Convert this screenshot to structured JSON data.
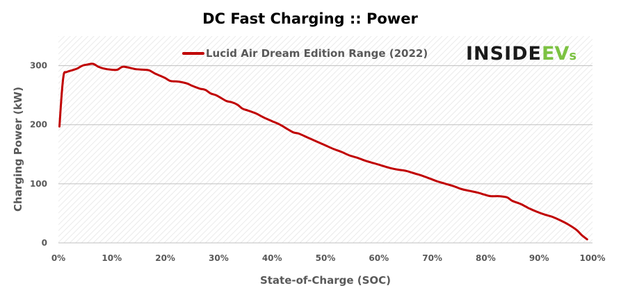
{
  "chart_data": {
    "type": "line",
    "title": "DC Fast Charging :: Power",
    "xlabel": "State-of-Charge  (SOC)",
    "ylabel": "Charging Power (kW)",
    "xlim": [
      0,
      100
    ],
    "ylim": [
      0,
      350
    ],
    "x_ticks": [
      "0%",
      "10%",
      "20%",
      "30%",
      "40%",
      "50%",
      "60%",
      "70%",
      "80%",
      "90%",
      "100%"
    ],
    "x_tick_values": [
      0,
      10,
      20,
      30,
      40,
      50,
      60,
      70,
      80,
      90,
      100
    ],
    "y_ticks": [
      "0",
      "100",
      "200",
      "300"
    ],
    "y_tick_values": [
      0,
      100,
      200,
      300
    ],
    "grid": true,
    "legend_position": "top-center",
    "series": [
      {
        "name": "Lucid Air Dream Edition Range (2022)",
        "color": "#c00000",
        "points": [
          [
            0.2,
            197
          ],
          [
            0.6,
            250
          ],
          [
            1.0,
            285
          ],
          [
            1.5,
            289
          ],
          [
            2.5,
            292
          ],
          [
            3.5,
            295
          ],
          [
            4.5,
            300
          ],
          [
            5.5,
            302
          ],
          [
            6.5,
            303
          ],
          [
            7.5,
            298
          ],
          [
            8.5,
            295
          ],
          [
            10.0,
            293
          ],
          [
            11.0,
            293
          ],
          [
            12.0,
            298
          ],
          [
            13.0,
            297
          ],
          [
            14.5,
            294
          ],
          [
            16.0,
            293
          ],
          [
            17.0,
            292
          ],
          [
            18.0,
            287
          ],
          [
            19.0,
            283
          ],
          [
            20.0,
            279
          ],
          [
            21.0,
            274
          ],
          [
            22.5,
            273
          ],
          [
            24.0,
            270
          ],
          [
            25.0,
            266
          ],
          [
            26.5,
            261
          ],
          [
            27.5,
            259
          ],
          [
            28.5,
            253
          ],
          [
            29.5,
            250
          ],
          [
            30.5,
            245
          ],
          [
            31.5,
            240
          ],
          [
            32.5,
            238
          ],
          [
            33.5,
            234
          ],
          [
            34.5,
            227
          ],
          [
            35.5,
            224
          ],
          [
            37.0,
            219
          ],
          [
            38.5,
            212
          ],
          [
            40.0,
            206
          ],
          [
            41.5,
            200
          ],
          [
            43.0,
            192
          ],
          [
            44.0,
            187
          ],
          [
            45.0,
            185
          ],
          [
            46.5,
            179
          ],
          [
            48.0,
            173
          ],
          [
            50.0,
            165
          ],
          [
            51.5,
            159
          ],
          [
            53.0,
            154
          ],
          [
            54.5,
            148
          ],
          [
            56.0,
            144
          ],
          [
            57.5,
            139
          ],
          [
            59.0,
            135
          ],
          [
            60.5,
            131
          ],
          [
            62.0,
            127
          ],
          [
            63.5,
            124
          ],
          [
            65.0,
            122
          ],
          [
            66.5,
            118
          ],
          [
            68.0,
            114
          ],
          [
            69.5,
            109
          ],
          [
            71.0,
            104
          ],
          [
            72.5,
            100
          ],
          [
            74.0,
            96
          ],
          [
            75.5,
            91
          ],
          [
            77.0,
            88
          ],
          [
            78.5,
            85
          ],
          [
            80.0,
            81
          ],
          [
            81.0,
            79
          ],
          [
            82.5,
            79
          ],
          [
            84.0,
            77
          ],
          [
            85.0,
            71
          ],
          [
            86.5,
            66
          ],
          [
            88.0,
            59
          ],
          [
            89.5,
            53
          ],
          [
            91.0,
            48
          ],
          [
            92.5,
            44
          ],
          [
            94.0,
            38
          ],
          [
            95.5,
            31
          ],
          [
            97.0,
            22
          ],
          [
            98.0,
            13
          ],
          [
            99.0,
            6
          ]
        ]
      }
    ]
  },
  "logo": {
    "main": "INSIDE",
    "accent": "EV",
    "suffix": "s"
  }
}
